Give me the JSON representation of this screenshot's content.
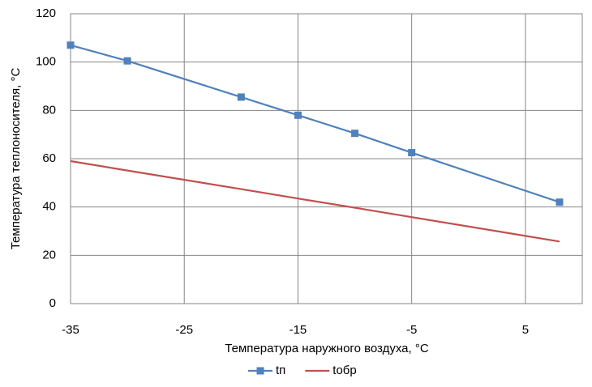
{
  "chart_data": {
    "type": "line",
    "x_label": "Температура наружного воздуха, °С",
    "y_label": "Температура теплоносителя, °С",
    "x": [
      -35,
      -30,
      -20,
      -15,
      -10,
      -5,
      8
    ],
    "series": [
      {
        "name": "tп",
        "color": "#4f81bd",
        "marker": "square",
        "values": [
          107,
          100.5,
          85.5,
          78,
          70.5,
          62.5,
          42
        ]
      },
      {
        "name": "tобр",
        "color": "#c0504d",
        "marker": "none",
        "values": [
          59,
          55.1,
          47.4,
          43.5,
          39.7,
          35.8,
          25.7
        ]
      }
    ],
    "xlim": [
      -35,
      10
    ],
    "xticks": [
      -35,
      -25,
      -15,
      -5,
      5
    ],
    "ylim": [
      0,
      120
    ],
    "yticks": [
      0,
      20,
      40,
      60,
      80,
      100,
      120
    ],
    "grid": true,
    "legend": "bottom"
  }
}
